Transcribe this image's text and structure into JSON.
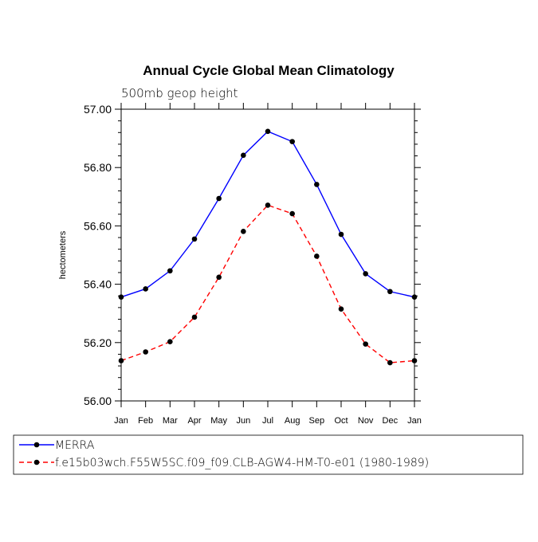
{
  "chart_data": {
    "type": "line",
    "title": "Annual Cycle Global Mean Climatology",
    "subtitle": "500mb geop height",
    "xlabel": "",
    "ylabel": "hectometers",
    "categories": [
      "Jan",
      "Feb",
      "Mar",
      "Apr",
      "May",
      "Jun",
      "Jul",
      "Aug",
      "Sep",
      "Oct",
      "Nov",
      "Dec",
      "Jan"
    ],
    "ylim": [
      56.0,
      57.0
    ],
    "yticks": [
      "56.00",
      "56.20",
      "56.40",
      "56.60",
      "56.80",
      "57.00"
    ],
    "grid": false,
    "legend_position": "below chart",
    "series": [
      {
        "name": "MERRA",
        "color": "#0000ff",
        "dash": "solid",
        "values": [
          56.356,
          56.384,
          56.446,
          56.555,
          56.694,
          56.842,
          56.924,
          56.889,
          56.742,
          56.571,
          56.436,
          56.375,
          56.356
        ]
      },
      {
        "name": "f.e15b03wch.F55W5SC.f09_f09.CLB-AGW4-HM-T0-e01 (1980-1989)",
        "color": "#ff0000",
        "dash": "dashed",
        "values": [
          56.138,
          56.168,
          56.203,
          56.287,
          56.424,
          56.581,
          56.671,
          56.642,
          56.496,
          56.315,
          56.195,
          56.131,
          56.138
        ]
      }
    ]
  }
}
